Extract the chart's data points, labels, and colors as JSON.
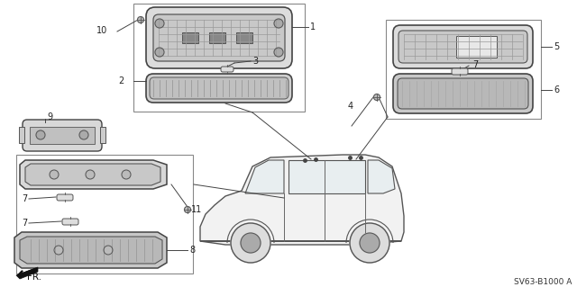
{
  "background_color": "#ffffff",
  "diagram_code": "SV63-B1000 A",
  "fig_width": 6.4,
  "fig_height": 3.19,
  "dpi": 100,
  "line_color": "#444444",
  "text_color": "#222222",
  "part_fill": "#e8e8e8",
  "part_edge": "#555555",
  "box_edge": "#777777",
  "grid_color": "#aaaaaa",
  "lens_fill": "#d0d0d0",
  "housing_fill": "#c8c8c8",
  "dark_fill": "#999999",
  "white_fill": "#f0f0f0",
  "car_fill": "#f2f2f2",
  "car_edge": "#555555"
}
